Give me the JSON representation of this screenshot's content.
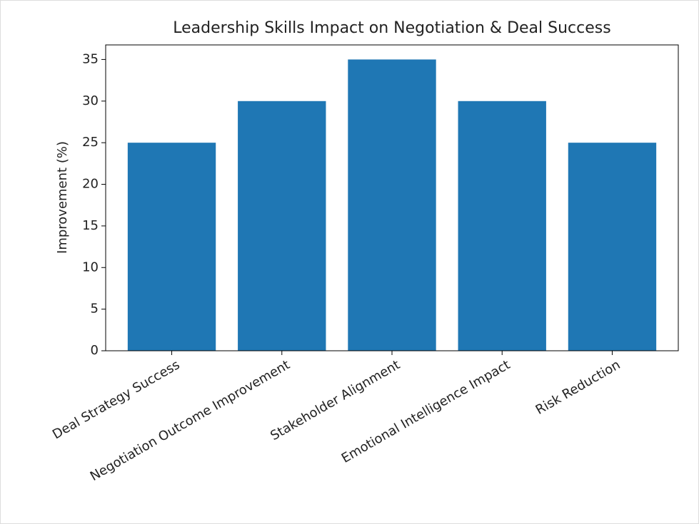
{
  "chart_data": {
    "type": "bar",
    "title": "Leadership Skills Impact on Negotiation & Deal Success",
    "y_label": "Improvement (%)",
    "categories": [
      "Deal Strategy Success",
      "Negotiation Outcome Improvement",
      "Stakeholder Alignment",
      "Emotional Intelligence Impact",
      "Risk Reduction"
    ],
    "values": [
      25,
      30,
      35,
      30,
      25
    ],
    "color": "#1f77b4",
    "ylim": [
      0,
      36.75
    ],
    "yticks": [
      0,
      5,
      10,
      15,
      20,
      25,
      30,
      35
    ],
    "grid": false
  }
}
